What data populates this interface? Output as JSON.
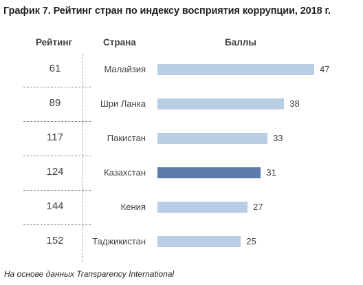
{
  "title": "График 7. Рейтинг стран по индексу восприятия коррупции, 2018 г.",
  "headers": {
    "rank": "Рейтинг",
    "country": "Страна",
    "score": "Баллы"
  },
  "footer": "На основе данных Transparency International",
  "colors": {
    "bar": "#b9cde4",
    "highlight": "#5b7ba8"
  },
  "chart_data": {
    "type": "bar",
    "orientation": "horizontal",
    "categories": [
      "Малайзия",
      "Шри Ланка",
      "Пакистан",
      "Казахстан",
      "Кения",
      "Таджикистан"
    ],
    "ranks": [
      "61",
      "89",
      "117",
      "124",
      "144",
      "152"
    ],
    "values": [
      47,
      38,
      33,
      31,
      27,
      25
    ],
    "highlight": "Казахстан",
    "xlim": [
      0,
      47
    ]
  }
}
